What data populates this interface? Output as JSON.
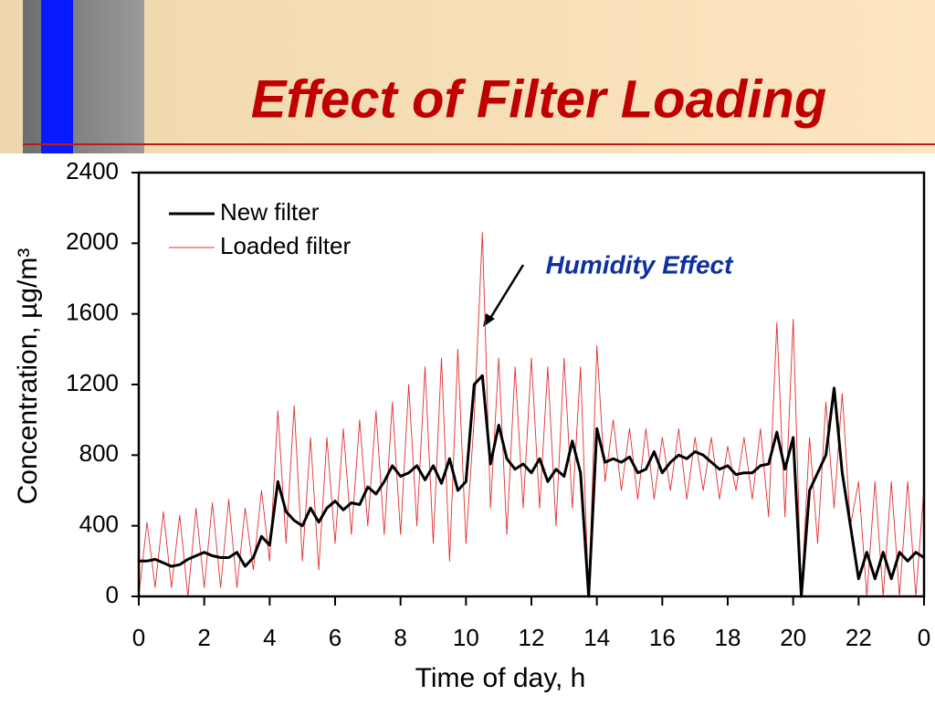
{
  "chart_data": {
    "type": "line",
    "title": "Effect of Filter Loading",
    "xlabel": "Time of day, h",
    "ylabel": "Concentration, µg/m³",
    "annotation": "Humidity Effect",
    "legend": "upper left",
    "xlim": [
      0,
      24
    ],
    "ylim": [
      0,
      2400
    ],
    "xticks": [
      0,
      2,
      4,
      6,
      8,
      10,
      12,
      14,
      16,
      18,
      20,
      22,
      {
        "value": 24,
        "label": "0"
      }
    ],
    "yticks": [
      0,
      400,
      800,
      1200,
      1600,
      2000,
      2400
    ],
    "x": [
      0,
      0.25,
      0.5,
      0.75,
      1,
      1.25,
      1.5,
      1.75,
      2,
      2.25,
      2.5,
      2.75,
      3,
      3.25,
      3.5,
      3.75,
      4,
      4.25,
      4.5,
      4.75,
      5,
      5.25,
      5.5,
      5.75,
      6,
      6.25,
      6.5,
      6.75,
      7,
      7.25,
      7.5,
      7.75,
      8,
      8.25,
      8.5,
      8.75,
      9,
      9.25,
      9.5,
      9.75,
      10,
      10.25,
      10.5,
      10.75,
      11,
      11.25,
      11.5,
      11.75,
      12,
      12.25,
      12.5,
      12.75,
      13,
      13.25,
      13.5,
      13.75,
      14,
      14.25,
      14.5,
      14.75,
      15,
      15.25,
      15.5,
      15.75,
      16,
      16.25,
      16.5,
      16.75,
      17,
      17.25,
      17.5,
      17.75,
      18,
      18.25,
      18.5,
      18.75,
      19,
      19.25,
      19.5,
      19.75,
      20,
      20.25,
      20.5,
      20.75,
      21,
      21.25,
      21.5,
      21.75,
      22,
      22.25,
      22.5,
      22.75,
      23,
      23.25,
      23.5,
      23.75,
      24
    ],
    "series": [
      {
        "name": "Loaded filter",
        "color": "#e03030",
        "width": 0.9,
        "values": [
          0,
          420,
          50,
          480,
          50,
          460,
          0,
          500,
          50,
          530,
          50,
          550,
          50,
          500,
          150,
          600,
          200,
          1050,
          300,
          1080,
          200,
          900,
          150,
          900,
          300,
          950,
          350,
          1000,
          400,
          1050,
          350,
          1100,
          350,
          1200,
          400,
          1300,
          300,
          1350,
          200,
          1400,
          300,
          1000,
          2060,
          500,
          1350,
          350,
          1300,
          500,
          1350,
          500,
          1300,
          400,
          1350,
          500,
          1300,
          0,
          1420,
          650,
          1000,
          600,
          950,
          550,
          950,
          550,
          900,
          600,
          950,
          550,
          900,
          600,
          900,
          550,
          850,
          600,
          900,
          550,
          950,
          450,
          1550,
          450,
          1570,
          0,
          900,
          300,
          1100,
          500,
          1150,
          400,
          650,
          0,
          650,
          0,
          650,
          0,
          650,
          0,
          620
        ]
      },
      {
        "name": "New filter",
        "color": "#000000",
        "width": 3,
        "values": [
          200,
          200,
          210,
          190,
          170,
          180,
          210,
          230,
          250,
          230,
          220,
          220,
          250,
          170,
          220,
          340,
          290,
          650,
          480,
          430,
          400,
          500,
          420,
          500,
          540,
          490,
          530,
          520,
          620,
          580,
          650,
          740,
          680,
          700,
          740,
          660,
          740,
          640,
          780,
          600,
          650,
          1200,
          1250,
          750,
          970,
          780,
          720,
          750,
          700,
          780,
          650,
          720,
          680,
          880,
          700,
          0,
          950,
          760,
          780,
          760,
          790,
          700,
          720,
          820,
          700,
          760,
          800,
          780,
          820,
          800,
          760,
          720,
          740,
          690,
          700,
          700,
          740,
          750,
          930,
          720,
          900,
          0,
          600,
          700,
          800,
          1180,
          700,
          400,
          100,
          250,
          100,
          250,
          100,
          250,
          200,
          250,
          220
        ]
      }
    ]
  }
}
